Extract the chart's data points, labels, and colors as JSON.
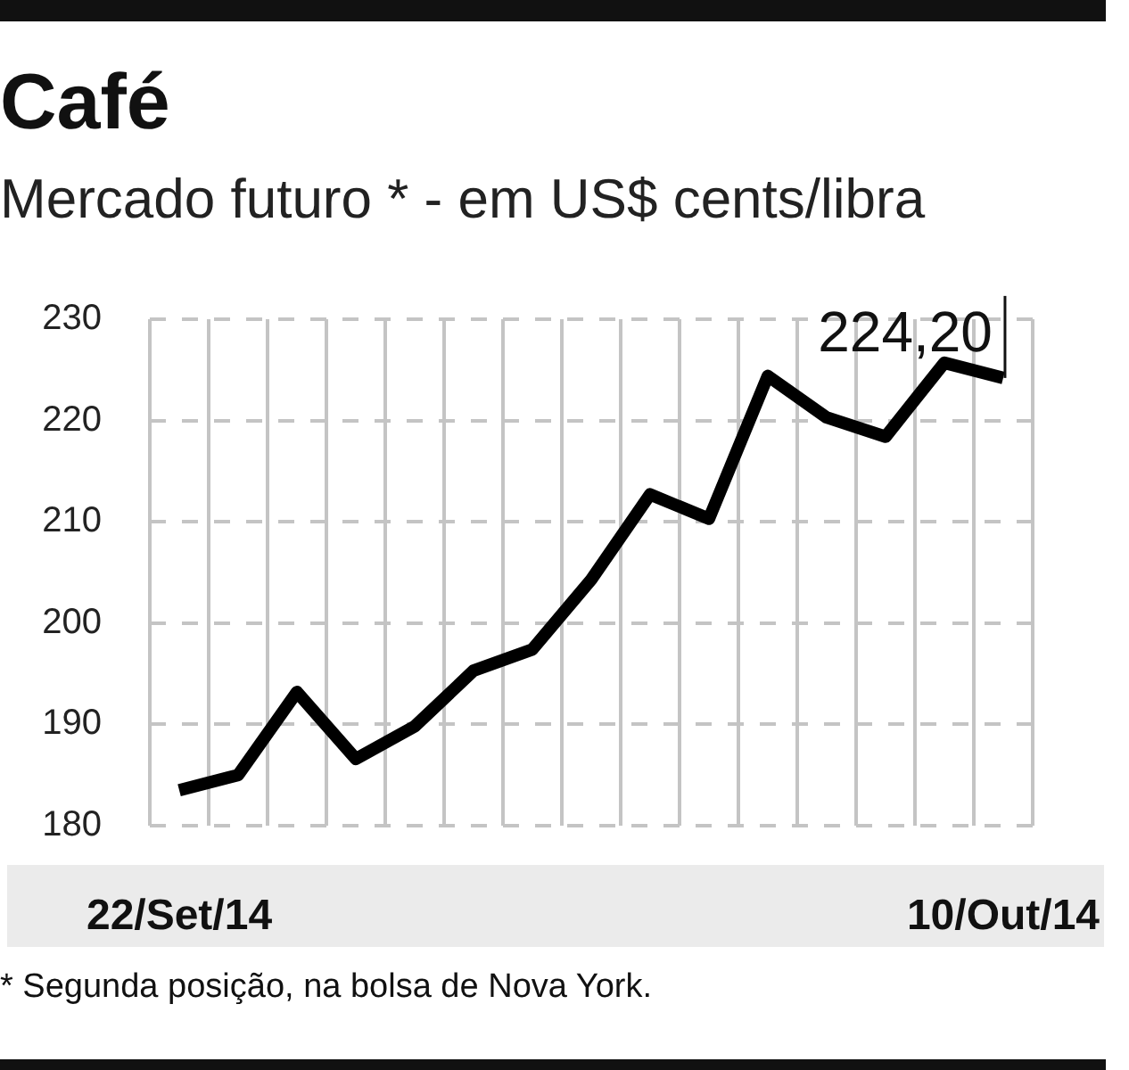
{
  "chart_data": {
    "type": "line",
    "title": "Café",
    "subtitle": "Mercado futuro * - em US$ cents/libra",
    "categories": [
      "22/Set/14",
      null,
      null,
      null,
      null,
      null,
      null,
      null,
      null,
      null,
      null,
      null,
      null,
      null,
      "10/Out/14"
    ],
    "series": [
      {
        "color": "#000000",
        "values": [
          183.5,
          185.0,
          193.2,
          186.6,
          189.8,
          195.3,
          197.4,
          204.3,
          212.7,
          210.3,
          224.4,
          220.3,
          218.4,
          225.7,
          224.2
        ]
      }
    ],
    "ylim": [
      180,
      230
    ],
    "yticks": [
      180,
      190,
      200,
      210,
      220,
      230
    ],
    "grid": true,
    "legend": false,
    "marker": "none",
    "line_style": "solid",
    "annotations": [
      {
        "text": "224,20",
        "x": "10/Out/14",
        "y": 224.2
      },
      "* Segunda posição, na bolsa de Nova York."
    ]
  }
}
